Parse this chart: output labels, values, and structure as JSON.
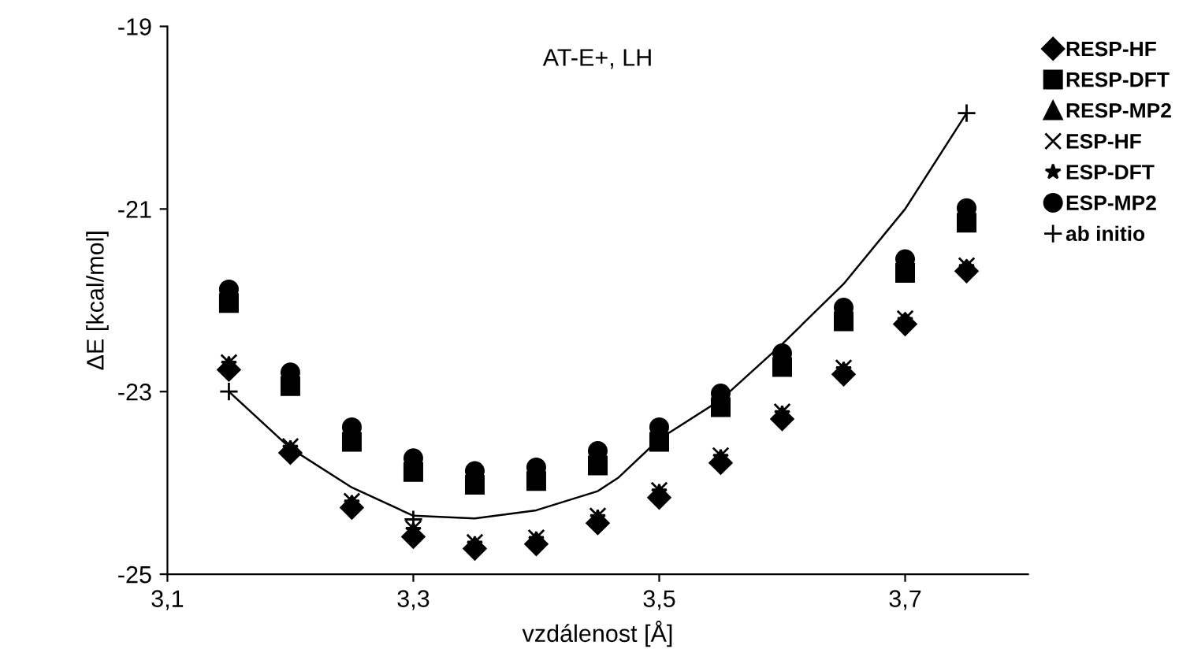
{
  "chart_data": {
    "type": "scatter",
    "title": "AT-E+, LH",
    "xlabel": "vzdálenost [Å]",
    "ylabel": "ΔE [kcal/mol]",
    "x": [
      3.15,
      3.2,
      3.25,
      3.3,
      3.35,
      3.4,
      3.45,
      3.5,
      3.55,
      3.6,
      3.65,
      3.7,
      3.75
    ],
    "series": [
      {
        "name": "RESP-HF",
        "color": "#000000",
        "marker": "diamond",
        "values": [
          -22.76,
          -23.67,
          -24.27,
          -24.59,
          -24.72,
          -24.67,
          -24.44,
          -24.16,
          -23.78,
          -23.3,
          -22.81,
          -22.26,
          -21.68
        ]
      },
      {
        "name": "RESP-DFT",
        "color": "#000000",
        "marker": "square",
        "values": [
          -22.03,
          -22.94,
          -23.55,
          -23.88,
          -24.02,
          -23.98,
          -23.81,
          -23.55,
          -23.17,
          -22.73,
          -22.23,
          -21.7,
          -21.15
        ]
      },
      {
        "name": "RESP-MP2",
        "color": "#000000",
        "marker": "triangle",
        "values": [
          null,
          null,
          null,
          null,
          null,
          null,
          null,
          null,
          null,
          null,
          null,
          null,
          null
        ]
      },
      {
        "name": "ESP-HF",
        "color": "#000000",
        "marker": "cross",
        "values": [
          -22.68,
          -23.6,
          -24.2,
          -24.5,
          -24.65,
          -24.6,
          -24.36,
          -24.08,
          -23.7,
          -23.22,
          -22.74,
          -22.2,
          -21.62
        ]
      },
      {
        "name": "ESP-DFT",
        "color": "#000000",
        "marker": "star",
        "values": [
          -22.7,
          -23.62,
          -24.22,
          -24.52,
          -24.67,
          -24.62,
          -24.38,
          -24.1,
          -23.72,
          -23.24,
          -22.76,
          -22.22,
          -21.64
        ]
      },
      {
        "name": "ESP-MP2",
        "color": "#000000",
        "marker": "circle",
        "values": [
          -21.88,
          -22.79,
          -23.39,
          -23.73,
          -23.87,
          -23.83,
          -23.65,
          -23.39,
          -23.02,
          -22.58,
          -22.08,
          -21.55,
          -20.99
        ]
      },
      {
        "name": "ab initio",
        "color": "#000000",
        "marker": "plus",
        "x": [
          3.15,
          3.3,
          3.75
        ],
        "values": [
          -23.0,
          -24.4,
          -19.95
        ]
      },
      {
        "type": "line",
        "color": "#000000",
        "marker": "none",
        "x": [
          3.15,
          3.2,
          3.25,
          3.3,
          3.35,
          3.4,
          3.45,
          3.467,
          3.5,
          3.55,
          3.6,
          3.65,
          3.7,
          3.75
        ],
        "values": [
          -23.0,
          -23.62,
          -24.05,
          -24.36,
          -24.39,
          -24.3,
          -24.09,
          -23.94,
          -23.52,
          -23.09,
          -22.48,
          -21.82,
          -21.0,
          -19.95
        ]
      }
    ],
    "xlim": [
      3.1,
      3.8
    ],
    "xticks": [
      {
        "value": 3.1,
        "label": "3,1"
      },
      {
        "value": 3.3,
        "label": "3,3"
      },
      {
        "value": 3.5,
        "label": "3,5"
      },
      {
        "value": 3.7,
        "label": "3,7"
      }
    ],
    "ylim": [
      -25,
      -19
    ],
    "yticks": [
      -25,
      -23,
      -21,
      -19
    ],
    "grid": false,
    "legend": "right"
  }
}
